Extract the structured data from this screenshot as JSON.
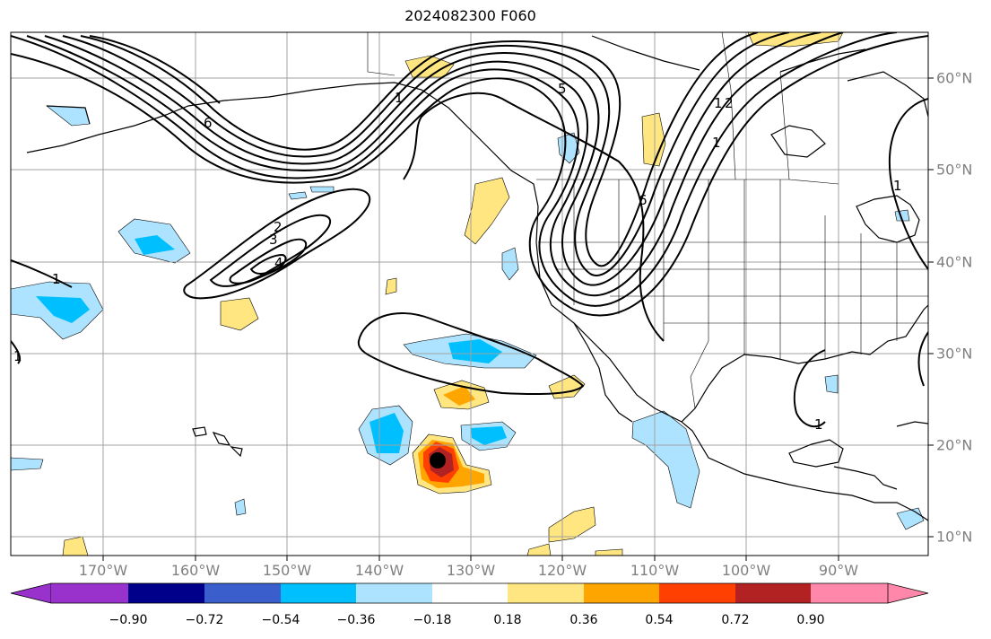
{
  "title": "2024082300 F060",
  "lon_labels": [
    "170°W",
    "160°W",
    "150°W",
    "140°W",
    "130°W",
    "120°W",
    "110°W",
    "100°W",
    "90°W"
  ],
  "lat_labels": [
    "60°N",
    "50°N",
    "40°N",
    "30°N",
    "20°N",
    "10°N"
  ],
  "colorbar": {
    "levels": [
      "−0.90",
      "−0.72",
      "−0.54",
      "−0.36",
      "−0.18",
      "0.18",
      "0.36",
      "0.54",
      "0.72",
      "0.90"
    ],
    "colors": [
      "#9932cc",
      "#00008b",
      "#3a5fcd",
      "#00bfff",
      "#aee3ff",
      "#ffffff",
      "#ffe680",
      "#ffa500",
      "#ff4000",
      "#b22222",
      "#ff88aa"
    ]
  },
  "contour_labels": [
    "1",
    "2",
    "3",
    "4",
    "5",
    "6",
    "1",
    "2",
    "6",
    "1",
    "1",
    "1",
    "1",
    "1"
  ],
  "chart_data": {
    "type": "map",
    "title": "2024082300 F060",
    "extent_lon": [
      -180,
      -80
    ],
    "extent_lat": [
      8,
      65
    ],
    "fill_field_levels": [
      -0.9,
      -0.72,
      -0.54,
      -0.36,
      -0.18,
      0.18,
      0.36,
      0.54,
      0.72,
      0.9
    ],
    "contour_levels": [
      1,
      2,
      3,
      4,
      5,
      6
    ]
  }
}
